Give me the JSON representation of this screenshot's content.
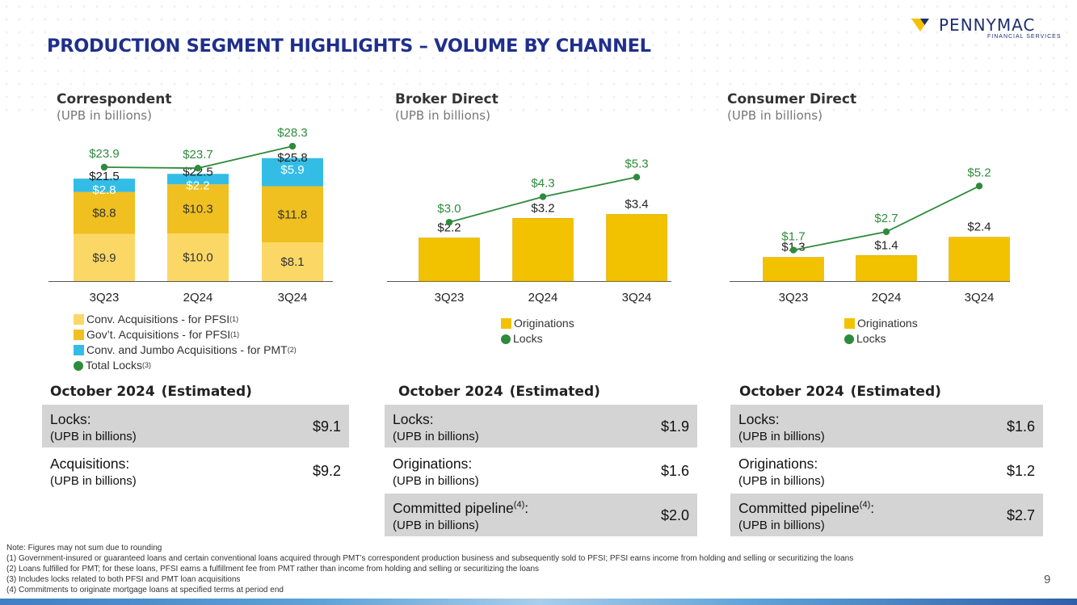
{
  "page": {
    "title": "PRODUCTION SEGMENT HIGHLIGHTS – VOLUME BY CHANNEL",
    "page_number": "9"
  },
  "logo": {
    "name": "PENNYMAC",
    "tagline": "FINANCIAL SERVICES"
  },
  "colors": {
    "conv": "#fbd866",
    "govt": "#f0c020",
    "pmt": "#33bde6",
    "orig": "#f2c200",
    "locks": "#2e8b3c",
    "title": "#1f2f8c"
  },
  "legends": {
    "correspondent": [
      {
        "label": "Conv. Acquisitions - for PFSI",
        "note": "(1)",
        "color": "#fbd866",
        "shape": "square"
      },
      {
        "label": "Gov’t. Acquisitions - for PFSI",
        "note": "(1)",
        "color": "#f0c020",
        "shape": "square"
      },
      {
        "label": "Conv. and Jumbo Acquisitions - for PMT",
        "note": "(2)",
        "color": "#33bde6",
        "shape": "square"
      },
      {
        "label": "Total Locks",
        "note": "(3)",
        "color": "#2e8b3c",
        "shape": "dot"
      }
    ],
    "broker": [
      {
        "label": "Originations",
        "color": "#f2c200",
        "shape": "square"
      },
      {
        "label": "Locks",
        "color": "#2e8b3c",
        "shape": "dot"
      }
    ],
    "consumer": [
      {
        "label": "Originations",
        "color": "#f2c200",
        "shape": "square"
      },
      {
        "label": "Locks",
        "color": "#2e8b3c",
        "shape": "dot"
      }
    ]
  },
  "chart_data": [
    {
      "type": "bar",
      "stacked": true,
      "title": "Correspondent",
      "subtitle": "(UPB in billions)",
      "categories": [
        "3Q23",
        "2Q24",
        "3Q24"
      ],
      "series": [
        {
          "name": "Conv. Acquisitions - for PFSI",
          "values": [
            9.9,
            10.0,
            8.1
          ],
          "labels": [
            "$9.9",
            "$10.0",
            "$8.1"
          ]
        },
        {
          "name": "Gov’t. Acquisitions - for PFSI",
          "values": [
            8.8,
            10.3,
            11.8
          ],
          "labels": [
            "$8.8",
            "$10.3",
            "$11.8"
          ]
        },
        {
          "name": "Conv. and Jumbo Acquisitions - for PMT",
          "values": [
            2.8,
            2.2,
            5.9
          ],
          "labels": [
            "$2.8",
            "$2.2",
            "$5.9"
          ]
        }
      ],
      "totals": [
        "$21.5",
        "$22.5",
        "$25.8"
      ],
      "total_values": [
        21.5,
        22.5,
        25.8
      ],
      "line": {
        "name": "Total Locks",
        "values": [
          23.9,
          23.7,
          28.3
        ],
        "labels": [
          "$23.9",
          "$23.7",
          "$28.3"
        ]
      },
      "ylim": [
        0,
        30
      ]
    },
    {
      "type": "bar",
      "title": "Broker Direct",
      "subtitle": "(UPB in billions)",
      "categories": [
        "3Q23",
        "2Q24",
        "3Q24"
      ],
      "series": [
        {
          "name": "Originations",
          "values": [
            2.2,
            3.2,
            3.4
          ],
          "labels": [
            "$2.2",
            "$3.2",
            "$3.4"
          ]
        }
      ],
      "line": {
        "name": "Locks",
        "values": [
          3.0,
          4.3,
          5.3
        ],
        "labels": [
          "$3.0",
          "$4.3",
          "$5.3"
        ]
      },
      "ylim": [
        0,
        5.6
      ]
    },
    {
      "type": "bar",
      "title": "Consumer Direct",
      "subtitle": "(UPB in billions)",
      "categories": [
        "3Q23",
        "2Q24",
        "3Q24"
      ],
      "series": [
        {
          "name": "Originations",
          "values": [
            1.3,
            1.4,
            2.4
          ],
          "labels": [
            "$1.3",
            "$1.4",
            "$2.4"
          ]
        }
      ],
      "line": {
        "name": "Locks",
        "values": [
          1.7,
          2.7,
          5.2
        ],
        "labels": [
          "$1.7",
          "$2.7",
          "$5.2"
        ]
      },
      "ylim": [
        0,
        5.7
      ]
    }
  ],
  "estimates": [
    {
      "heading": "October 2024",
      "heading_note": "(Estimated)",
      "rows": [
        {
          "label": "Locks:",
          "sub": "(UPB in billions)",
          "value": "$9.1",
          "grey": true
        },
        {
          "label": "Acquisitions:",
          "sub": "(UPB in billions)",
          "value": "$9.2",
          "grey": false
        }
      ]
    },
    {
      "heading": "October 2024",
      "heading_note": "(Estimated)",
      "rows": [
        {
          "label": "Locks:",
          "sub": "(UPB in billions)",
          "value": "$1.9",
          "grey": true
        },
        {
          "label": "Originations:",
          "sub": "(UPB in billions)",
          "value": "$1.6",
          "grey": false
        },
        {
          "label": "Committed pipeline",
          "note": "(4)",
          "suffix": ":",
          "sub": "(UPB in billions)",
          "value": "$2.0",
          "grey": true
        }
      ]
    },
    {
      "heading": "October 2024",
      "heading_note": "(Estimated)",
      "rows": [
        {
          "label": "Locks:",
          "sub": "(UPB in billions)",
          "value": "$1.6",
          "grey": true
        },
        {
          "label": "Originations:",
          "sub": "(UPB in billions)",
          "value": "$1.2",
          "grey": false
        },
        {
          "label": "Committed pipeline",
          "note": "(4)",
          "suffix": ":",
          "sub": "(UPB in billions)",
          "value": "$2.7",
          "grey": true
        }
      ]
    }
  ],
  "notes": [
    "Note: Figures may not sum due to rounding",
    "(1) Government-insured or guaranteed loans and certain conventional loans acquired through PMT’s correspondent production business and subsequently sold to PFSI; PFSI earns income from holding and selling or securitizing the loans",
    "(2) Loans fulfilled for PMT; for these loans, PFSI earns a fulfillment fee from PMT rather than income from holding and selling or securitizing the loans",
    "(3) Includes locks related to both PFSI and PMT loan acquisitions",
    "(4) Commitments to originate mortgage loans at specified terms at period end"
  ]
}
